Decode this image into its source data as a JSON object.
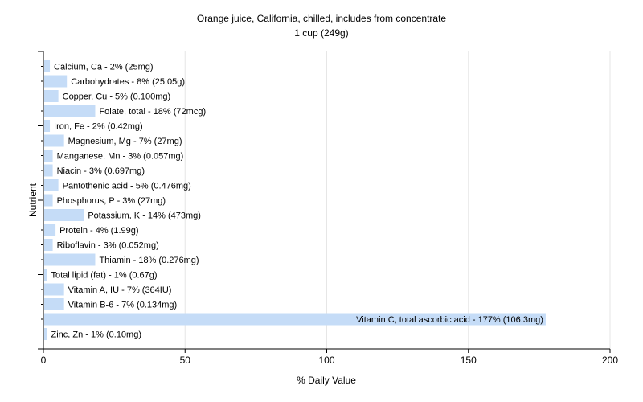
{
  "chart_data": {
    "type": "bar",
    "orientation": "horizontal",
    "title": "Orange juice, California, chilled, includes from concentrate",
    "subtitle": "1 cup (249g)",
    "xlabel": "% Daily Value",
    "ylabel": "Nutrient",
    "xlim": [
      0,
      200
    ],
    "xticks": [
      0,
      50,
      100,
      150,
      200
    ],
    "grid": true,
    "bar_color": "#c5dcf7",
    "categories": [
      "Calcium, Ca",
      "Carbohydrates",
      "Copper, Cu",
      "Folate, total",
      "Iron, Fe",
      "Magnesium, Mg",
      "Manganese, Mn",
      "Niacin",
      "Pantothenic acid",
      "Phosphorus, P",
      "Potassium, K",
      "Protein",
      "Riboflavin",
      "Thiamin",
      "Total lipid (fat)",
      "Vitamin A, IU",
      "Vitamin B-6",
      "Vitamin C, total ascorbic acid",
      "Zinc, Zn"
    ],
    "values": [
      2,
      8,
      5,
      18,
      2,
      7,
      3,
      3,
      5,
      3,
      14,
      4,
      3,
      18,
      1,
      7,
      7,
      177,
      1
    ],
    "labels": [
      "Calcium, Ca - 2% (25mg)",
      "Carbohydrates - 8% (25.05g)",
      "Copper, Cu - 5% (0.100mg)",
      "Folate, total - 18% (72mcg)",
      "Iron, Fe - 2% (0.42mg)",
      "Magnesium, Mg - 7% (27mg)",
      "Manganese, Mn - 3% (0.057mg)",
      "Niacin - 3% (0.697mg)",
      "Pantothenic acid - 5% (0.476mg)",
      "Phosphorus, P - 3% (27mg)",
      "Potassium, K - 14% (473mg)",
      "Protein - 4% (1.99g)",
      "Riboflavin - 3% (0.052mg)",
      "Thiamin - 18% (0.276mg)",
      "Total lipid (fat) - 1% (0.67g)",
      "Vitamin A, IU - 7% (364IU)",
      "Vitamin B-6 - 7% (0.134mg)",
      "Vitamin C, total ascorbic acid - 177% (106.3mg)",
      "Zinc, Zn - 1% (0.10mg)"
    ]
  }
}
